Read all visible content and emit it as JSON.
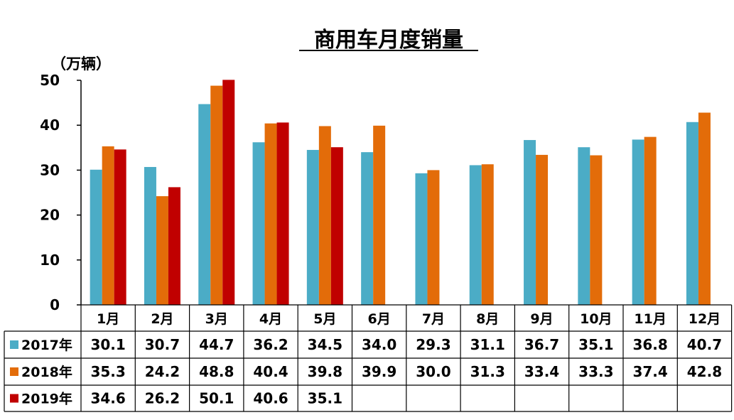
{
  "chart_data": {
    "type": "bar",
    "title": "商用车月度销量",
    "unit_label": "（万辆）",
    "categories": [
      "1月",
      "2月",
      "3月",
      "4月",
      "5月",
      "6月",
      "7月",
      "8月",
      "9月",
      "10月",
      "11月",
      "12月"
    ],
    "ylim": [
      0,
      50
    ],
    "yticks": [
      0,
      10,
      20,
      30,
      40,
      50
    ],
    "series": [
      {
        "name": "2017年",
        "color": "#4bacc6",
        "values": [
          30.1,
          30.7,
          44.7,
          36.2,
          34.5,
          34.0,
          29.3,
          31.1,
          36.7,
          35.1,
          36.8,
          40.7
        ],
        "labels": [
          "30.1",
          "30.7",
          "44.7",
          "36.2",
          "34.5",
          "34.0",
          "29.3",
          "31.1",
          "36.7",
          "35.1",
          "36.8",
          "40.7"
        ]
      },
      {
        "name": "2018年",
        "color": "#e36c09",
        "values": [
          35.3,
          24.2,
          48.8,
          40.4,
          39.8,
          39.9,
          30.0,
          31.3,
          33.4,
          33.3,
          37.4,
          42.8
        ],
        "labels": [
          "35.3",
          "24.2",
          "48.8",
          "40.4",
          "39.8",
          "39.9",
          "30.0",
          "31.3",
          "33.4",
          "33.3",
          "37.4",
          "42.8"
        ]
      },
      {
        "name": "2019年",
        "color": "#c00000",
        "values": [
          34.6,
          26.2,
          50.1,
          40.6,
          35.1,
          null,
          null,
          null,
          null,
          null,
          null,
          null
        ],
        "labels": [
          "34.6",
          "26.2",
          "50.1",
          "40.6",
          "35.1",
          "",
          "",
          "",
          "",
          "",
          "",
          ""
        ]
      }
    ],
    "grid": false,
    "legend": "table-below"
  }
}
